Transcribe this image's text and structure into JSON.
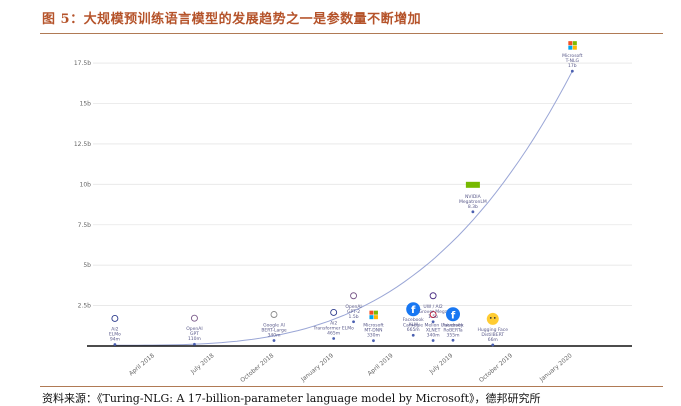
{
  "figure": {
    "title": "图 5：大规模预训练语言模型的发展趋势之一是参数量不断增加",
    "source": "资料来源：《Turing-NLG: A 17-billion-parameter language model by Microsoft》，德邦研究所"
  },
  "chart_data": {
    "type": "scatter",
    "title": "",
    "xlabel": "",
    "ylabel": "",
    "ylim": [
      0,
      18
    ],
    "xlim": [
      "2018-01",
      "2020-04"
    ],
    "y_ticks": [
      "2.5b",
      "5b",
      "7.5b",
      "10b",
      "12.5b",
      "15b",
      "17.5b"
    ],
    "y_tick_values": [
      2.5,
      5,
      7.5,
      10,
      12.5,
      15,
      17.5
    ],
    "x_ticks": [
      "April 2018",
      "July 2018",
      "October 2018",
      "January 2019",
      "April 2019",
      "July 2019",
      "October 2019",
      "January 2020"
    ],
    "x_tick_dates": [
      "2018-04",
      "2018-07",
      "2018-10",
      "2019-01",
      "2019-04",
      "2019-07",
      "2019-10",
      "2020-01"
    ],
    "grid": true,
    "trend_curve": true,
    "points": [
      {
        "org": "Ai2",
        "model": "ELMo",
        "value_text": "94m",
        "date": "2018-02",
        "value": 0.094,
        "icon": "ai2-logo-icon"
      },
      {
        "org": "OpenAI",
        "model": "GPT",
        "value_text": "110m",
        "date": "2018-06",
        "value": 0.11,
        "icon": "openai-logo-icon"
      },
      {
        "org": "Google AI",
        "model": "BERT-Large",
        "value_text": "340m",
        "date": "2018-10",
        "value": 0.34,
        "icon": "google-logo-icon"
      },
      {
        "org": "Ai2",
        "model": "Transformer ELMo",
        "value_text": "465m",
        "date": "2019-01",
        "value": 0.465,
        "icon": "ai2-logo-icon"
      },
      {
        "org": "OpenAI",
        "model": "GPT-2",
        "value_text": "1.5b",
        "date": "2019-02",
        "value": 1.5,
        "icon": "openai-logo-icon"
      },
      {
        "org": "Microsoft",
        "model": "MT-DNN",
        "value_text": "330m",
        "date": "2019-03",
        "value": 0.33,
        "icon": "microsoft-logo-icon"
      },
      {
        "org": "Facebook",
        "model": "XLM",
        "value_text": "665m",
        "date": "2019-05",
        "value": 0.665,
        "icon": "facebook-logo-icon"
      },
      {
        "org": "Carnegie Mellon University",
        "model": "XLNET",
        "value_text": "340m",
        "date": "2019-06",
        "value": 0.34,
        "icon": "cmu-logo-icon"
      },
      {
        "org": "UW / AI2",
        "model": "Grover-Mega",
        "value_text": "1.5b",
        "date": "2019-06",
        "value": 1.5,
        "icon": "uw-logo-icon"
      },
      {
        "org": "Facebook",
        "model": "RoBERTa",
        "value_text": "355m",
        "date": "2019-07",
        "value": 0.355,
        "icon": "facebook-logo-icon"
      },
      {
        "org": "NVIDIA",
        "model": "MegatronLM",
        "value_text": "8.3b",
        "date": "2019-08",
        "value": 8.3,
        "icon": "nvidia-logo-icon"
      },
      {
        "org": "Hugging Face",
        "model": "DistilBERT",
        "value_text": "66m",
        "date": "2019-09",
        "value": 0.066,
        "icon": "huggingface-logo-icon"
      },
      {
        "org": "Microsoft",
        "model": "T-NLG",
        "value_text": "17b",
        "date": "2020-01",
        "value": 17,
        "icon": "microsoft-logo-icon"
      }
    ]
  }
}
